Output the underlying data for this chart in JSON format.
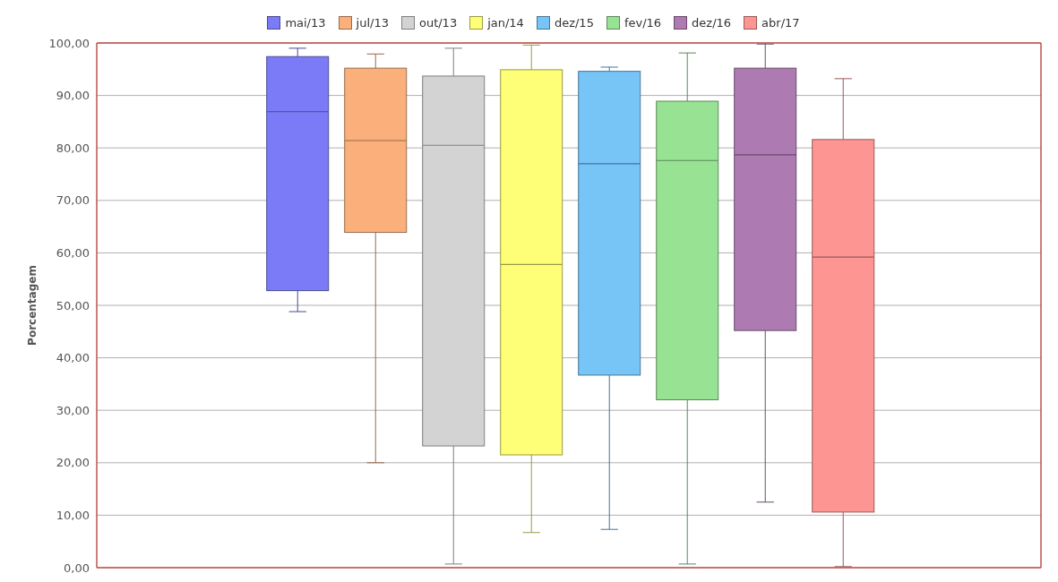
{
  "chart_data": {
    "type": "box",
    "ylabel": "Porcentagem",
    "categories": [
      null
    ],
    "legend": "top",
    "grid": "y",
    "ylim": [
      0,
      100
    ],
    "yticks": [
      {
        "value": 0,
        "label": "0,00"
      },
      {
        "value": 10,
        "label": "10,00"
      },
      {
        "value": 20,
        "label": "20,00"
      },
      {
        "value": 30,
        "label": "30,00"
      },
      {
        "value": 40,
        "label": "40,00"
      },
      {
        "value": 50,
        "label": "50,00"
      },
      {
        "value": 60,
        "label": "60,00"
      },
      {
        "value": 70,
        "label": "70,00"
      },
      {
        "value": 80,
        "label": "80,00"
      },
      {
        "value": 90,
        "label": "90,00"
      },
      {
        "value": 100,
        "label": "100,00"
      }
    ],
    "series": [
      {
        "name": "mai/13",
        "color": "#7b7bf7",
        "boxes": [
          {
            "low": 48.8,
            "q1": 52.8,
            "median": 86.9,
            "q3": 97.4,
            "high": 99.0
          }
        ]
      },
      {
        "name": "jul/13",
        "color": "#fbb07c",
        "boxes": [
          {
            "low": 20.0,
            "q1": 63.9,
            "median": 81.4,
            "q3": 95.2,
            "high": 97.9
          }
        ]
      },
      {
        "name": "out/13",
        "color": "#d3d3d3",
        "boxes": [
          {
            "low": 0.7,
            "q1": 23.2,
            "median": 80.5,
            "q3": 93.7,
            "high": 99.0
          }
        ]
      },
      {
        "name": "jan/14",
        "color": "#ffff77",
        "boxes": [
          {
            "low": 6.7,
            "q1": 21.5,
            "median": 57.8,
            "q3": 94.9,
            "high": 99.6
          }
        ]
      },
      {
        "name": "dez/15",
        "color": "#77c4f7",
        "boxes": [
          {
            "low": 7.3,
            "q1": 36.7,
            "median": 77.0,
            "q3": 94.6,
            "high": 95.4
          }
        ]
      },
      {
        "name": "fev/16",
        "color": "#98e294",
        "boxes": [
          {
            "low": 0.7,
            "q1": 32.0,
            "median": 77.6,
            "q3": 88.9,
            "high": 98.1
          }
        ]
      },
      {
        "name": "dez/16",
        "color": "#ad7bb1",
        "boxes": [
          {
            "low": 12.5,
            "q1": 45.2,
            "median": 78.7,
            "q3": 95.2,
            "high": 99.8
          }
        ]
      },
      {
        "name": "abr/17",
        "color": "#fd9592",
        "boxes": [
          {
            "low": 0.2,
            "q1": 10.6,
            "median": 59.2,
            "q3": 81.6,
            "high": 93.2
          }
        ]
      }
    ]
  }
}
